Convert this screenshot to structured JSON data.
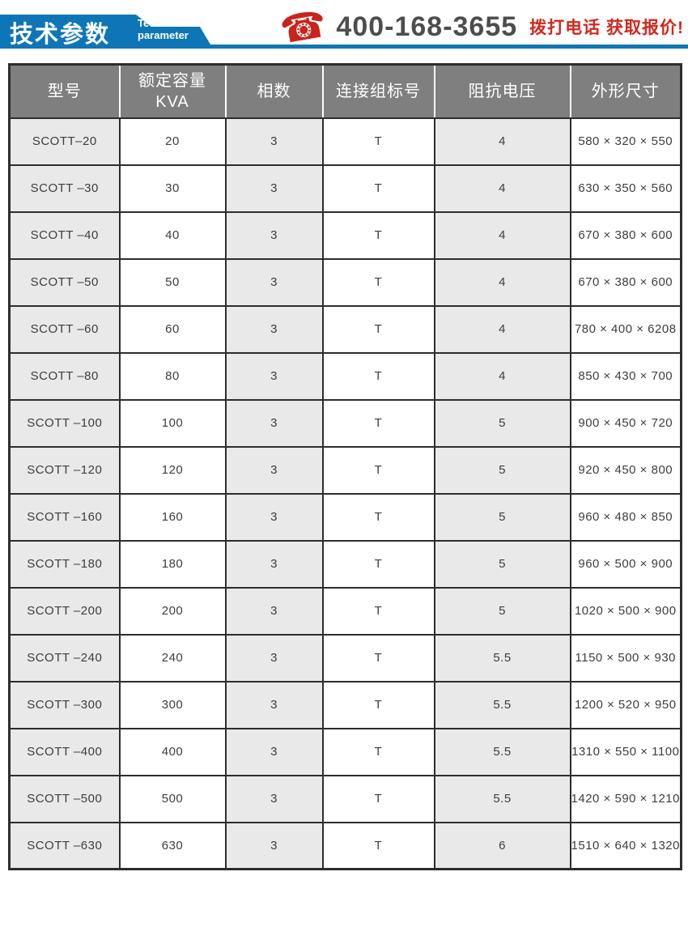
{
  "header": {
    "title_cn": "技术参数",
    "title_en": "Technical parameter",
    "phone_icon_glyph": "☎",
    "phone_number": "400-168-3655",
    "phone_cta": "拨打电话 获取报价!"
  },
  "colors": {
    "banner_blue": "#0e76b6",
    "accent_red": "#c9241b",
    "cta_red": "#d2281d",
    "header_gray": "#7f7f7f",
    "row_alt_gray": "#e9e9e9",
    "phone_number_gray": "#4d4d4d",
    "border_dark": "#2d2d2d"
  },
  "table": {
    "column_keys": [
      "model",
      "capacity",
      "phases",
      "connection",
      "impedance",
      "dimensions"
    ],
    "headers": [
      "型号",
      "额定容量\nKVA",
      "相数",
      "连接组标号",
      "阻抗电压",
      "外形尺寸"
    ],
    "rows": [
      [
        "SCOTT–20",
        "20",
        "3",
        "T",
        "4",
        "580 × 320 × 550"
      ],
      [
        "SCOTT –30",
        "30",
        "3",
        "T",
        "4",
        "630 × 350 × 560"
      ],
      [
        "SCOTT –40",
        "40",
        "3",
        "T",
        "4",
        "670 × 380 × 600"
      ],
      [
        "SCOTT –50",
        "50",
        "3",
        "T",
        "4",
        "670 × 380 × 600"
      ],
      [
        "SCOTT –60",
        "60",
        "3",
        "T",
        "4",
        "780 × 400 × 6208"
      ],
      [
        "SCOTT –80",
        "80",
        "3",
        "T",
        "4",
        "850 × 430 × 700"
      ],
      [
        "SCOTT –100",
        "100",
        "3",
        "T",
        "5",
        "900 × 450 × 720"
      ],
      [
        "SCOTT –120",
        "120",
        "3",
        "T",
        "5",
        "920 × 450 × 800"
      ],
      [
        "SCOTT –160",
        "160",
        "3",
        "T",
        "5",
        "960 × 480 × 850"
      ],
      [
        "SCOTT –180",
        "180",
        "3",
        "T",
        "5",
        "960 × 500 × 900"
      ],
      [
        "SCOTT –200",
        "200",
        "3",
        "T",
        "5",
        "1020 × 500 × 900"
      ],
      [
        "SCOTT –240",
        "240",
        "3",
        "T",
        "5.5",
        "1150 × 500 × 930"
      ],
      [
        "SCOTT –300",
        "300",
        "3",
        "T",
        "5.5",
        "1200 × 520 × 950"
      ],
      [
        "SCOTT –400",
        "400",
        "3",
        "T",
        "5.5",
        "1310 × 550 × 1100"
      ],
      [
        "SCOTT –500",
        "500",
        "3",
        "T",
        "5.5",
        "1420 × 590 × 1210"
      ],
      [
        "SCOTT –630",
        "630",
        "3",
        "T",
        "6",
        "1510 × 640 × 1320"
      ]
    ]
  }
}
